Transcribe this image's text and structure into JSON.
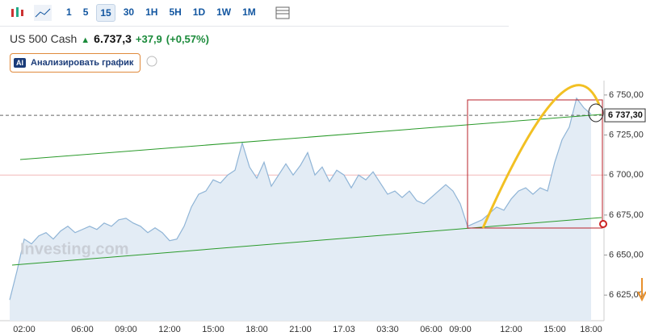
{
  "toolbar": {
    "intervals": [
      "1",
      "5",
      "15",
      "30",
      "1H",
      "5H",
      "1D",
      "1W",
      "1M"
    ],
    "selected": "15"
  },
  "header": {
    "name": "US 500 Cash",
    "price": "6.737,3",
    "change": "+37,9",
    "change_percent": "(+0,57%)"
  },
  "ai_button": "Анализировать график",
  "watermark": "Investing.com",
  "chart_data": {
    "type": "area",
    "color": "#8fb4d6",
    "fill": "#e3ecf5",
    "categories": [
      null,
      null,
      "02:00",
      null,
      null,
      null,
      null,
      null,
      null,
      null,
      "06:00",
      null,
      null,
      null,
      null,
      null,
      "09:00",
      null,
      null,
      null,
      null,
      null,
      "12:00",
      null,
      null,
      null,
      null,
      null,
      "15:00",
      null,
      null,
      null,
      null,
      null,
      "18:00",
      null,
      null,
      null,
      null,
      null,
      "21:00",
      null,
      null,
      null,
      null,
      null,
      "17.03",
      null,
      null,
      null,
      null,
      null,
      "03:30",
      null,
      null,
      null,
      null,
      null,
      "06:00",
      null,
      null,
      null,
      "09:00",
      null,
      null,
      null,
      null,
      null,
      null,
      "12:00",
      null,
      null,
      null,
      null,
      null,
      "15:00",
      null,
      null,
      null,
      null,
      "18:00"
    ],
    "values": [
      6622,
      6640,
      6660,
      6657,
      6662,
      6664,
      6660,
      6665,
      6668,
      6664,
      6666,
      6668,
      6666,
      6670,
      6668,
      6672,
      6673,
      6670,
      6668,
      6664,
      6667,
      6664,
      6659,
      6660,
      6668,
      6680,
      6688,
      6690,
      6697,
      6695,
      6700,
      6703,
      6720,
      6705,
      6698,
      6708,
      6693,
      6700,
      6707,
      6700,
      6706,
      6714,
      6700,
      6705,
      6696,
      6703,
      6700,
      6692,
      6700,
      6697,
      6702,
      6695,
      6688,
      6690,
      6686,
      6690,
      6684,
      6682,
      6686,
      6690,
      6694,
      6690,
      6682,
      6668,
      6670,
      6672,
      6676,
      6680,
      6678,
      6685,
      6690,
      6692,
      6688,
      6692,
      6690,
      6708,
      6722,
      6730,
      6748,
      6742,
      6738
    ],
    "ylim": [
      6609,
      6759
    ],
    "yticks": [
      {
        "value": 6625,
        "label": "6 625,00"
      },
      {
        "value": 6650,
        "label": "6 650,00"
      },
      {
        "value": 6675,
        "label": "6 675,00"
      },
      {
        "value": 6700,
        "label": "6 700,00"
      },
      {
        "value": 6725,
        "label": "6 725,00"
      },
      {
        "value": 6750,
        "label": "6 750,00"
      }
    ],
    "last_price": {
      "value": 6737.3,
      "label": "6 737,30"
    },
    "reference_line": 6700
  }
}
